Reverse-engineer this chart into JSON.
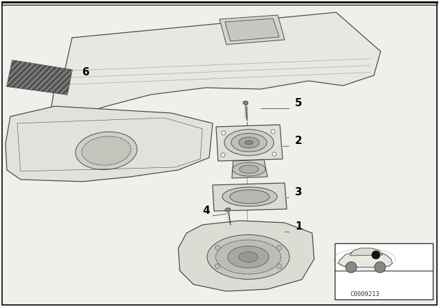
{
  "bg_color": "#ffffff",
  "line_color": "#4a4a4a",
  "diagram_code": "C0009213",
  "lw_main": 0.9,
  "lw_thin": 0.6,
  "lw_thick": 1.2
}
